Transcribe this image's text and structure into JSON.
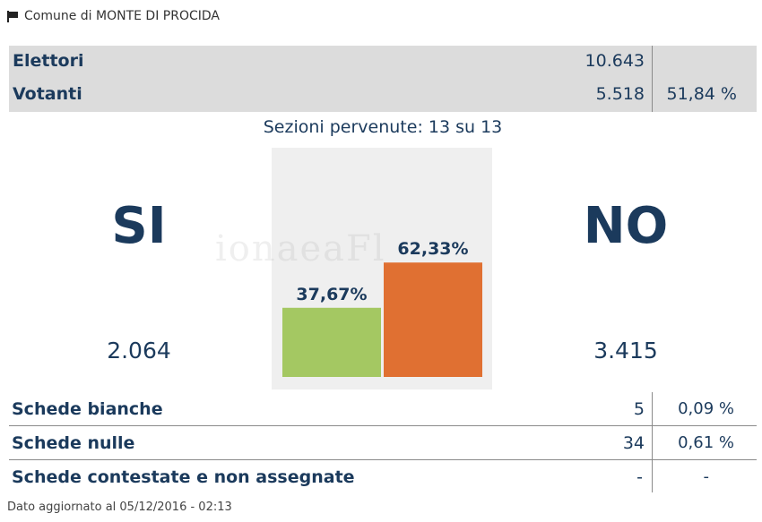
{
  "header": {
    "title": "Comune di MONTE DI PROCIDA",
    "icon": "flag-icon"
  },
  "summary": {
    "elettori": {
      "label": "Elettori",
      "value": "10.643"
    },
    "votanti": {
      "label": "Votanti",
      "value": "5.518",
      "percent": "51,84 %"
    }
  },
  "sezioni": "Sezioni pervenute: 13 su 13",
  "si": {
    "label": "SI",
    "votes": "2.064"
  },
  "no": {
    "label": "NO",
    "votes": "3.415"
  },
  "chart_data": {
    "type": "bar",
    "categories": [
      "SI",
      "NO"
    ],
    "values": [
      37.67,
      62.33
    ],
    "data_labels": [
      "37,67%",
      "62,33%"
    ],
    "colors": [
      "#a4c862",
      "#e07032"
    ],
    "ylim": [
      0,
      100
    ]
  },
  "watermark": "ionaeaFl",
  "schede": [
    {
      "label": "Schede bianche",
      "value": "5",
      "percent": "0,09 %"
    },
    {
      "label": "Schede nulle",
      "value": "34",
      "percent": "0,61 %"
    },
    {
      "label": "Schede contestate e non assegnate",
      "value": "-",
      "percent": "-"
    }
  ],
  "footer": "Dato aggiornato al 05/12/2016 - 02:13"
}
